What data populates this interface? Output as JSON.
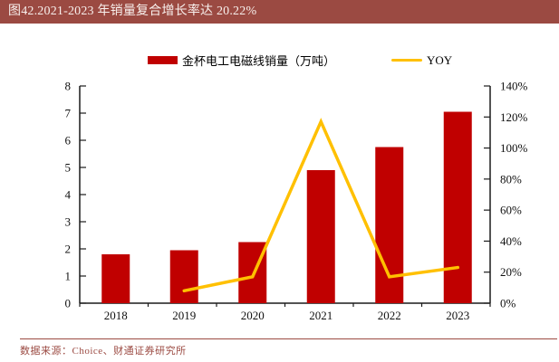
{
  "figure": {
    "title": "图42.2021-2023 年销量复合增长率达 20.22%",
    "source": "数据来源：Choice、财通证券研究所"
  },
  "colors": {
    "header_bg": "#9B4A42",
    "header_text": "#F8F0ED",
    "bar": "#C00000",
    "line": "#FFC000",
    "axis": "#1A1A1A",
    "source": "#9B4A42"
  },
  "legend": {
    "bar_label": "金杯电工电磁线销量（万吨）",
    "line_label": "YOY"
  },
  "chart_data": {
    "type": "bar",
    "subtype": "bar-line-combo",
    "title": "图42.2021-2023 年销量复合增长率达 20.22%",
    "categories": [
      "2018",
      "2019",
      "2020",
      "2021",
      "2022",
      "2023"
    ],
    "series": [
      {
        "name": "金杯电工电磁线销量（万吨）",
        "type": "bar",
        "yaxis": "left",
        "values": [
          1.8,
          1.95,
          2.25,
          4.9,
          5.75,
          7.05
        ]
      },
      {
        "name": "YOY",
        "type": "line",
        "yaxis": "right",
        "unit": "%",
        "values": [
          null,
          8,
          17,
          117,
          17,
          23
        ]
      }
    ],
    "left_axis": {
      "min": 0,
      "max": 8,
      "step": 1
    },
    "right_axis": {
      "min": 0,
      "max": 140,
      "step": 20,
      "suffix": "%"
    },
    "grid": false,
    "legend_position": "top-center"
  }
}
